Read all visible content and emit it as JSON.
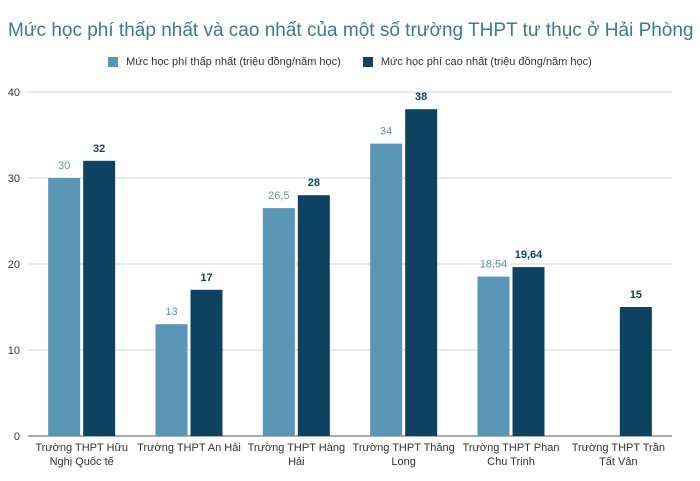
{
  "chart_data": {
    "type": "bar",
    "title": "Mức học phí thấp nhất và cao nhất của một số trường THPT tư thục ở Hải Phòng",
    "categories": [
      [
        "Trường THPT Hữu",
        "Nghị Quốc tế"
      ],
      [
        "Trường THPT An Hải"
      ],
      [
        "Trường THPT Hàng",
        "Hải"
      ],
      [
        "Trường THPT Thăng",
        "Long"
      ],
      [
        "Trường THPT Phan",
        "Chu Trinh"
      ],
      [
        "Trường THPT Trần",
        "Tất Vân"
      ]
    ],
    "series": [
      {
        "name": "Mức học phí thấp nhất (triệu đồng/năm học)",
        "color": "#5b96b6",
        "values": [
          30,
          13,
          26.5,
          34,
          18.54,
          null
        ],
        "labels": [
          "30",
          "13",
          "26,5",
          "34",
          "18,54",
          ""
        ]
      },
      {
        "name": "Mức học phí cao nhất (triệu đồng/năm học)",
        "color": "#0d4360",
        "values": [
          32,
          17,
          28,
          38,
          19.64,
          15
        ],
        "labels": [
          "32",
          "17",
          "28",
          "38",
          "19,64",
          "15"
        ]
      }
    ],
    "ylim": [
      0,
      40
    ],
    "yticks": [
      0,
      10,
      20,
      30,
      40
    ],
    "grid": true,
    "legend_position": "top"
  }
}
